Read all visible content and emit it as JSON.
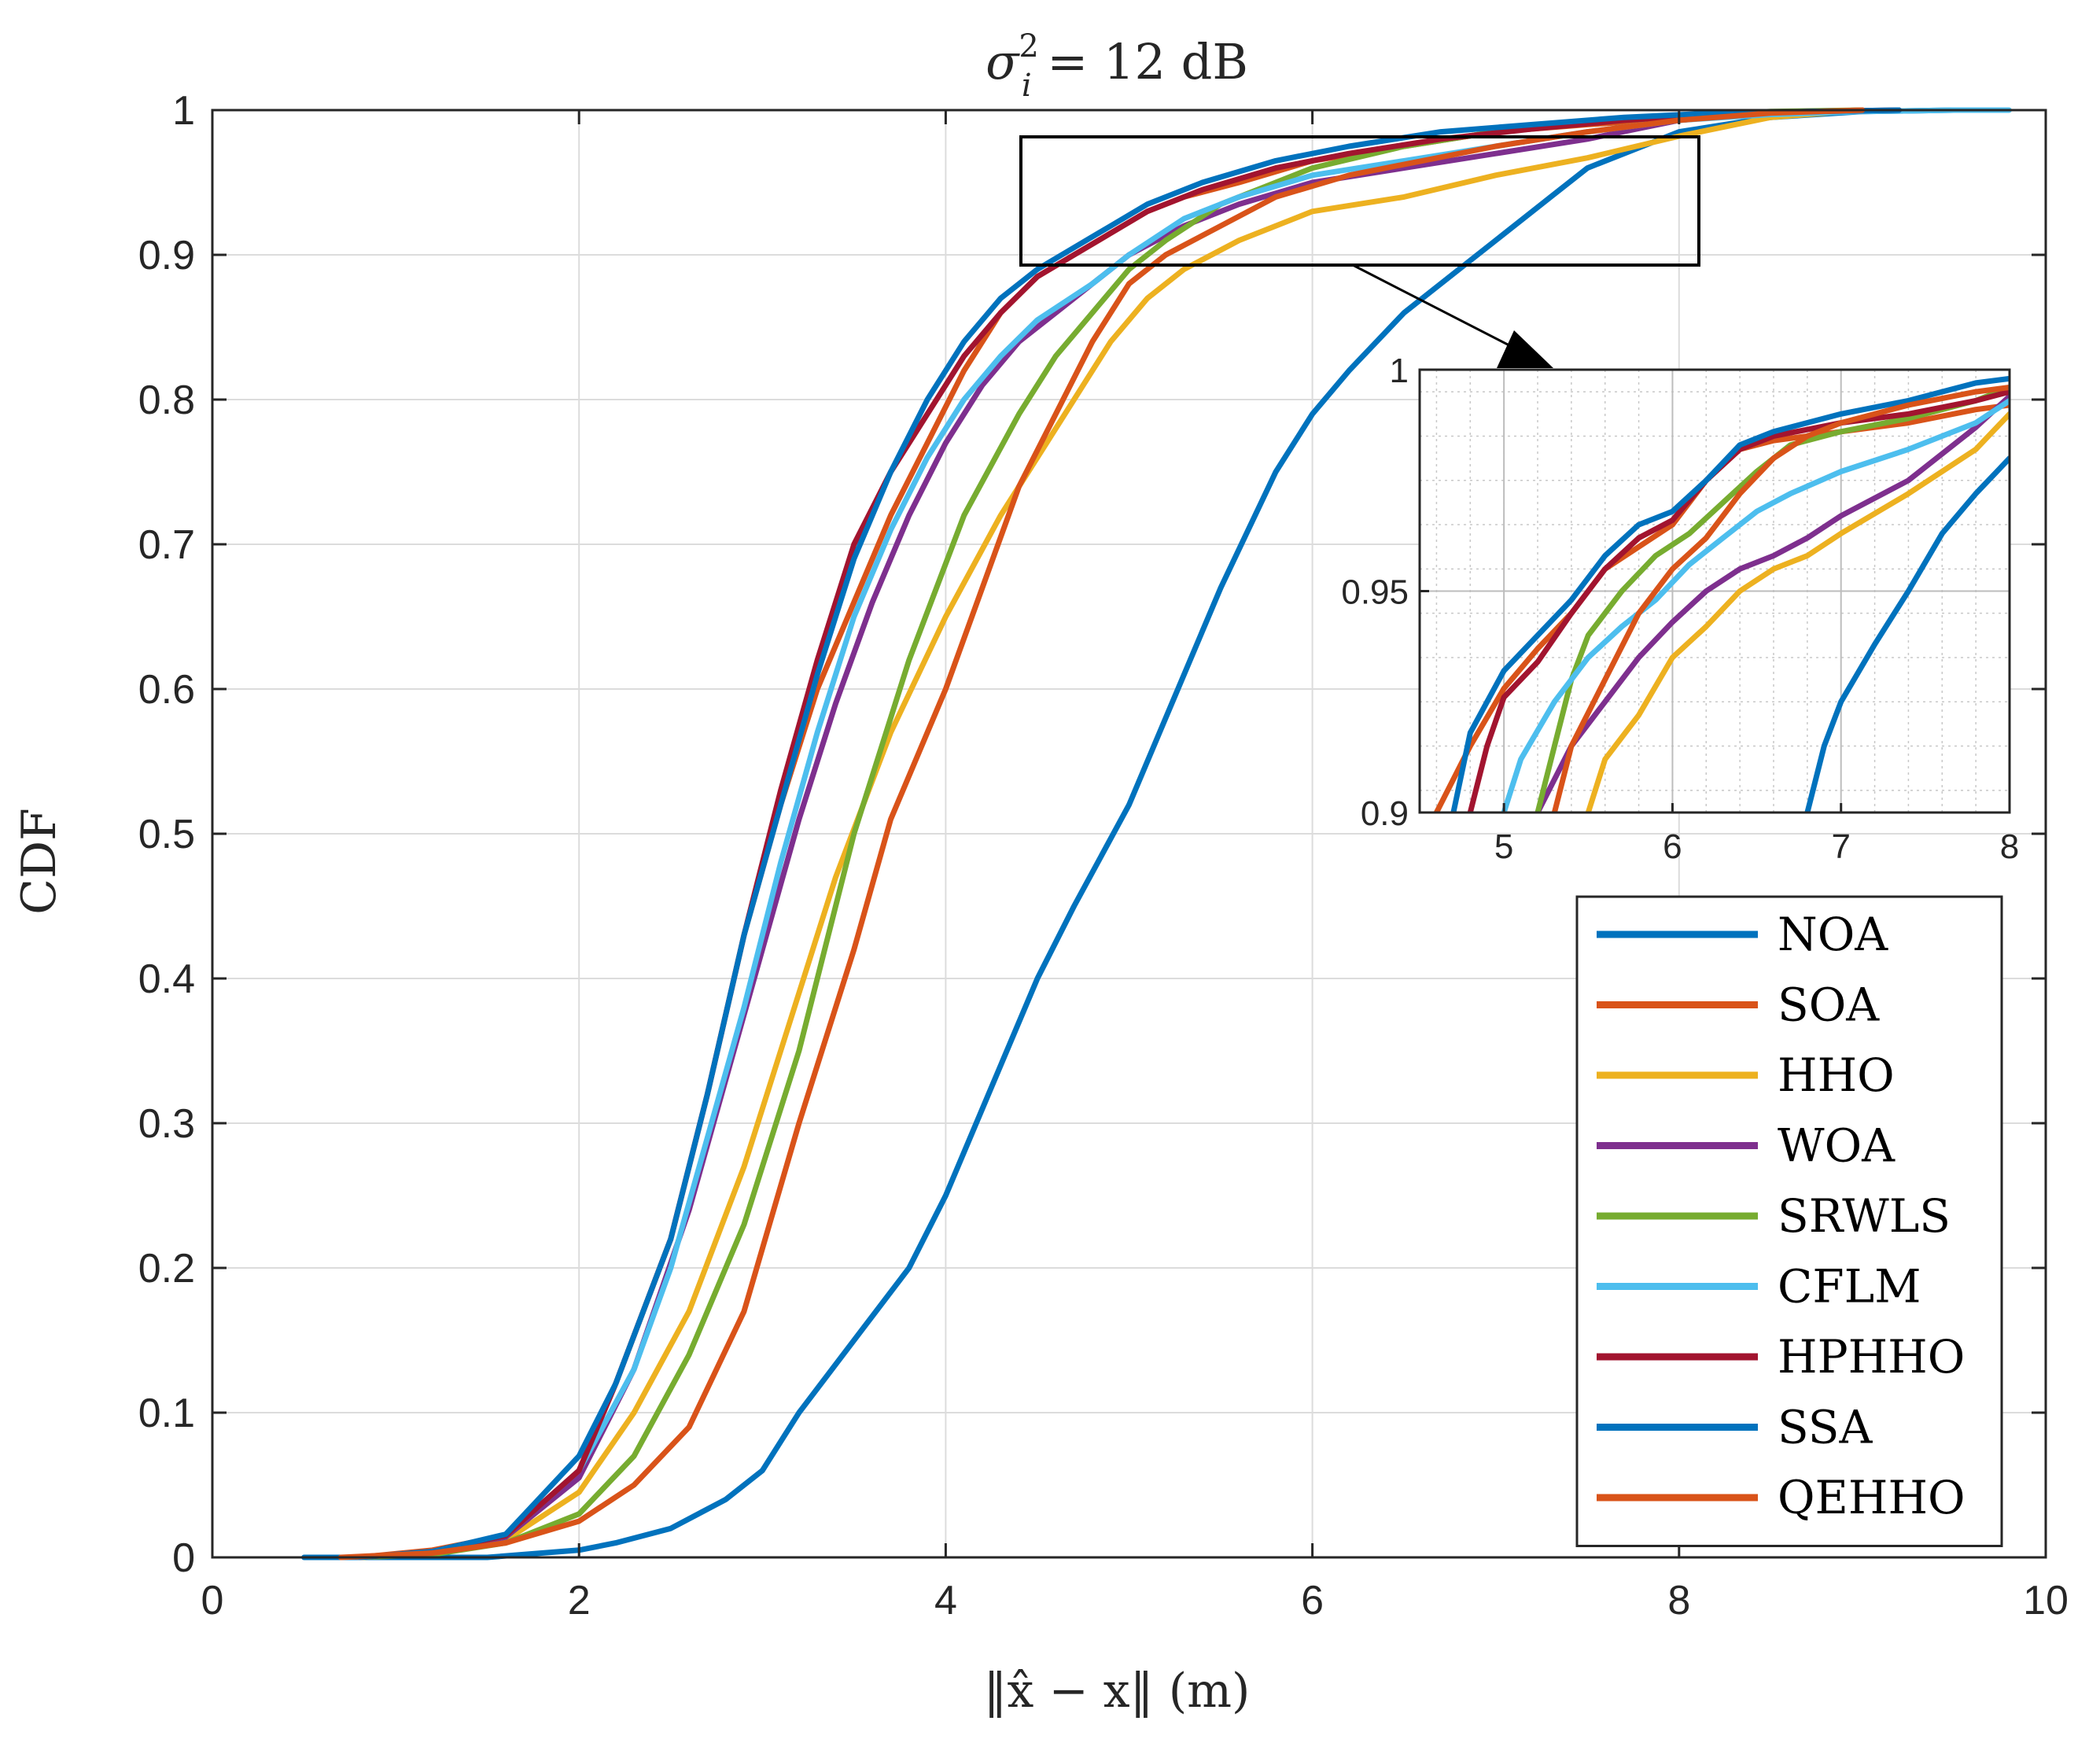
{
  "chart_data": {
    "type": "line",
    "title": "σi² = 12 dB",
    "title_parts": {
      "base": "σ",
      "sup": "2",
      "sub": "i",
      "rest": " = 12 dB"
    },
    "xlabel": "‖x̂ − x‖ (m)",
    "ylabel": "CDF",
    "xlim": [
      0,
      10
    ],
    "ylim": [
      0,
      1
    ],
    "x_ticks": [
      0,
      2,
      4,
      6,
      8,
      10
    ],
    "y_ticks": [
      0,
      0.1,
      0.2,
      0.3,
      0.4,
      0.5,
      0.6,
      0.7,
      0.8,
      0.9,
      1
    ],
    "x_tick_labels": [
      "0",
      "2",
      "4",
      "6",
      "8",
      "10"
    ],
    "y_tick_labels": [
      "0",
      "0.1",
      "0.2",
      "0.3",
      "0.4",
      "0.5",
      "0.6",
      "0.7",
      "0.8",
      "0.9",
      "1"
    ],
    "grid": true,
    "legend_position": "bottom-right",
    "series": [
      {
        "name": "NOA",
        "color": "#0072BD",
        "x": [
          0.5,
          1.0,
          1.5,
          2.0,
          2.2,
          2.5,
          2.8,
          3.0,
          3.2,
          3.5,
          3.8,
          4.0,
          4.2,
          4.5,
          4.7,
          5.0,
          5.2,
          5.5,
          5.8,
          6.0,
          6.2,
          6.5,
          6.8,
          7.0,
          7.3,
          7.5,
          8.0,
          8.5,
          9.0,
          9.5
        ],
        "y": [
          0,
          0,
          0,
          0.005,
          0.01,
          0.02,
          0.04,
          0.06,
          0.1,
          0.15,
          0.2,
          0.25,
          0.31,
          0.4,
          0.45,
          0.52,
          0.58,
          0.67,
          0.75,
          0.79,
          0.82,
          0.86,
          0.89,
          0.91,
          0.94,
          0.96,
          0.985,
          0.995,
          0.999,
          1.0
        ]
      },
      {
        "name": "SOA",
        "color": "#D95319",
        "x": [
          0.8,
          1.2,
          1.6,
          2.0,
          2.2,
          2.5,
          2.7,
          2.9,
          3.1,
          3.3,
          3.5,
          3.7,
          3.9,
          4.1,
          4.3,
          4.5,
          4.7,
          4.9,
          5.1,
          5.3,
          5.6,
          6.0,
          6.5,
          7.0,
          7.5,
          8.0,
          8.5,
          9.0
        ],
        "y": [
          0,
          0.005,
          0.015,
          0.06,
          0.12,
          0.22,
          0.32,
          0.43,
          0.52,
          0.6,
          0.66,
          0.72,
          0.77,
          0.82,
          0.86,
          0.885,
          0.9,
          0.915,
          0.93,
          0.94,
          0.95,
          0.965,
          0.975,
          0.985,
          0.99,
          0.994,
          0.998,
          1.0
        ]
      },
      {
        "name": "HHO",
        "color": "#EDB120",
        "x": [
          0.8,
          1.2,
          1.6,
          2.0,
          2.3,
          2.6,
          2.9,
          3.1,
          3.4,
          3.7,
          4.0,
          4.3,
          4.5,
          4.7,
          4.9,
          5.1,
          5.3,
          5.6,
          6.0,
          6.5,
          7.0,
          7.5,
          8.0,
          8.5,
          9.0
        ],
        "y": [
          0,
          0.003,
          0.012,
          0.045,
          0.1,
          0.17,
          0.27,
          0.35,
          0.47,
          0.57,
          0.65,
          0.72,
          0.76,
          0.8,
          0.84,
          0.87,
          0.89,
          0.91,
          0.93,
          0.94,
          0.955,
          0.967,
          0.982,
          0.995,
          1.0
        ]
      },
      {
        "name": "WOA",
        "color": "#7E2F8E",
        "x": [
          0.8,
          1.2,
          1.6,
          2.0,
          2.3,
          2.6,
          2.8,
          3.0,
          3.2,
          3.4,
          3.6,
          3.8,
          4.0,
          4.2,
          4.4,
          4.6,
          4.8,
          5.0,
          5.3,
          5.6,
          6.0,
          6.5,
          7.0,
          7.5,
          8.0,
          8.5,
          9.0
        ],
        "y": [
          0,
          0.004,
          0.014,
          0.055,
          0.13,
          0.24,
          0.33,
          0.42,
          0.51,
          0.59,
          0.66,
          0.72,
          0.77,
          0.81,
          0.84,
          0.86,
          0.88,
          0.9,
          0.92,
          0.935,
          0.95,
          0.96,
          0.97,
          0.98,
          0.993,
          0.998,
          1.0
        ]
      },
      {
        "name": "SRWLS",
        "color": "#77AC30",
        "x": [
          0.8,
          1.2,
          1.6,
          2.0,
          2.3,
          2.6,
          2.9,
          3.2,
          3.5,
          3.8,
          4.1,
          4.4,
          4.6,
          4.8,
          5.0,
          5.2,
          5.5,
          5.8,
          6.0,
          6.5,
          7.0,
          7.5,
          8.0,
          8.5,
          9.0
        ],
        "y": [
          0,
          0.002,
          0.01,
          0.03,
          0.07,
          0.14,
          0.23,
          0.35,
          0.5,
          0.62,
          0.72,
          0.79,
          0.83,
          0.86,
          0.89,
          0.91,
          0.935,
          0.95,
          0.96,
          0.975,
          0.985,
          0.992,
          0.996,
          0.999,
          1.0
        ]
      },
      {
        "name": "CFLM",
        "color": "#4DBEEE",
        "x": [
          0.8,
          1.2,
          1.6,
          2.0,
          2.3,
          2.5,
          2.7,
          2.9,
          3.1,
          3.3,
          3.5,
          3.7,
          3.9,
          4.1,
          4.3,
          4.5,
          4.8,
          5.0,
          5.3,
          5.6,
          6.0,
          6.5,
          7.0,
          7.5,
          8.0,
          8.5,
          9.0,
          9.5,
          9.8
        ],
        "y": [
          0,
          0.004,
          0.015,
          0.06,
          0.13,
          0.2,
          0.29,
          0.38,
          0.48,
          0.57,
          0.65,
          0.71,
          0.76,
          0.8,
          0.83,
          0.855,
          0.88,
          0.9,
          0.925,
          0.94,
          0.955,
          0.965,
          0.975,
          0.985,
          0.993,
          0.997,
          0.999,
          1.0,
          1.0
        ]
      },
      {
        "name": "HPHHO",
        "color": "#A2142F",
        "x": [
          0.8,
          1.2,
          1.6,
          2.0,
          2.2,
          2.5,
          2.7,
          2.9,
          3.1,
          3.3,
          3.5,
          3.7,
          3.9,
          4.1,
          4.3,
          4.5,
          4.7,
          4.9,
          5.1,
          5.4,
          5.8,
          6.2,
          6.7,
          7.2,
          7.7,
          8.2,
          8.7,
          9.2
        ],
        "y": [
          0,
          0.004,
          0.015,
          0.06,
          0.12,
          0.22,
          0.32,
          0.43,
          0.53,
          0.62,
          0.7,
          0.75,
          0.79,
          0.83,
          0.86,
          0.885,
          0.9,
          0.915,
          0.93,
          0.945,
          0.96,
          0.97,
          0.98,
          0.987,
          0.993,
          0.997,
          0.999,
          1.0
        ]
      },
      {
        "name": "SSA",
        "color": "#0072BD",
        "x": [
          0.8,
          1.2,
          1.6,
          2.0,
          2.2,
          2.5,
          2.7,
          2.9,
          3.1,
          3.3,
          3.5,
          3.7,
          3.9,
          4.1,
          4.3,
          4.5,
          4.7,
          4.9,
          5.1,
          5.4,
          5.8,
          6.2,
          6.7,
          7.2,
          7.7,
          8.2,
          8.7,
          9.2
        ],
        "y": [
          0,
          0.004,
          0.016,
          0.07,
          0.12,
          0.22,
          0.32,
          0.43,
          0.52,
          0.61,
          0.69,
          0.75,
          0.8,
          0.84,
          0.87,
          0.89,
          0.905,
          0.92,
          0.935,
          0.95,
          0.965,
          0.975,
          0.985,
          0.99,
          0.995,
          0.998,
          0.999,
          1.0
        ]
      },
      {
        "name": "QEHHO",
        "color": "#D95319",
        "x": [
          0.7,
          1.2,
          1.6,
          2.0,
          2.3,
          2.6,
          2.9,
          3.2,
          3.5,
          3.7,
          4.0,
          4.2,
          4.4,
          4.6,
          4.8,
          5.0,
          5.2,
          5.5,
          5.8,
          6.2,
          6.6,
          7.0,
          7.5,
          8.0,
          8.5,
          9.0
        ],
        "y": [
          0,
          0.003,
          0.01,
          0.025,
          0.05,
          0.09,
          0.17,
          0.3,
          0.42,
          0.51,
          0.6,
          0.67,
          0.74,
          0.79,
          0.84,
          0.88,
          0.9,
          0.92,
          0.94,
          0.955,
          0.965,
          0.975,
          0.985,
          0.993,
          0.998,
          1.0
        ]
      }
    ],
    "inset": {
      "xlim": [
        4.5,
        8
      ],
      "ylim": [
        0.9,
        1
      ],
      "x_ticks": [
        5,
        6,
        7,
        8
      ],
      "y_ticks": [
        0.9,
        0.95,
        1
      ],
      "x_tick_labels": [
        "5",
        "6",
        "7",
        "8"
      ],
      "y_tick_labels": [
        "0.9",
        "0.95",
        "1"
      ],
      "grid": true,
      "minor_grid": true,
      "series": [
        {
          "name": "NOA",
          "color": "#0072BD",
          "x": [
            6.8,
            6.9,
            7.0,
            7.2,
            7.4,
            7.6,
            7.8,
            8.0
          ],
          "y": [
            0.9,
            0.915,
            0.925,
            0.938,
            0.95,
            0.963,
            0.972,
            0.98
          ]
        },
        {
          "name": "SOA",
          "color": "#D95319",
          "x": [
            4.6,
            4.8,
            5.0,
            5.2,
            5.4,
            5.6,
            5.8,
            6.0,
            6.2,
            6.4,
            6.6,
            7.0,
            7.4,
            7.8,
            8.0
          ],
          "y": [
            0.9,
            0.915,
            0.928,
            0.937,
            0.945,
            0.955,
            0.96,
            0.965,
            0.975,
            0.982,
            0.984,
            0.986,
            0.988,
            0.991,
            0.992
          ]
        },
        {
          "name": "HHO",
          "color": "#EDB120",
          "x": [
            5.5,
            5.6,
            5.8,
            6.0,
            6.2,
            6.4,
            6.6,
            6.8,
            7.0,
            7.4,
            7.8,
            8.0
          ],
          "y": [
            0.9,
            0.912,
            0.922,
            0.935,
            0.942,
            0.95,
            0.955,
            0.958,
            0.963,
            0.972,
            0.982,
            0.99
          ]
        },
        {
          "name": "WOA",
          "color": "#7E2F8E",
          "x": [
            5.2,
            5.4,
            5.6,
            5.8,
            6.0,
            6.2,
            6.4,
            6.6,
            6.8,
            7.0,
            7.4,
            7.8,
            8.0
          ],
          "y": [
            0.9,
            0.915,
            0.925,
            0.935,
            0.943,
            0.95,
            0.955,
            0.958,
            0.962,
            0.967,
            0.975,
            0.987,
            0.994
          ]
        },
        {
          "name": "SRWLS",
          "color": "#77AC30",
          "x": [
            5.2,
            5.3,
            5.4,
            5.5,
            5.7,
            5.9,
            6.1,
            6.3,
            6.5,
            6.7,
            7.0,
            7.4,
            7.8,
            8.0
          ],
          "y": [
            0.9,
            0.915,
            0.93,
            0.94,
            0.95,
            0.958,
            0.963,
            0.97,
            0.977,
            0.983,
            0.986,
            0.989,
            0.993,
            0.996
          ]
        },
        {
          "name": "CFLM",
          "color": "#4DBEEE",
          "x": [
            5.0,
            5.1,
            5.3,
            5.5,
            5.7,
            5.9,
            6.1,
            6.3,
            6.5,
            6.7,
            7.0,
            7.4,
            7.8,
            8.0
          ],
          "y": [
            0.9,
            0.912,
            0.925,
            0.935,
            0.942,
            0.948,
            0.956,
            0.962,
            0.968,
            0.972,
            0.977,
            0.982,
            0.988,
            0.993
          ]
        },
        {
          "name": "HPHHO",
          "color": "#A2142F",
          "x": [
            4.8,
            4.9,
            5.0,
            5.2,
            5.4,
            5.6,
            5.8,
            6.0,
            6.2,
            6.4,
            6.6,
            7.0,
            7.4,
            7.8,
            8.0
          ],
          "y": [
            0.9,
            0.915,
            0.926,
            0.934,
            0.945,
            0.955,
            0.962,
            0.966,
            0.975,
            0.982,
            0.985,
            0.988,
            0.99,
            0.993,
            0.995
          ]
        },
        {
          "name": "SSA",
          "color": "#0072BD",
          "x": [
            4.7,
            4.8,
            5.0,
            5.2,
            5.4,
            5.6,
            5.8,
            6.0,
            6.2,
            6.4,
            6.6,
            7.0,
            7.4,
            7.8,
            8.0
          ],
          "y": [
            0.9,
            0.918,
            0.932,
            0.94,
            0.948,
            0.958,
            0.965,
            0.968,
            0.975,
            0.983,
            0.986,
            0.99,
            0.993,
            0.997,
            0.998
          ]
        },
        {
          "name": "QEHHO",
          "color": "#D95319",
          "x": [
            5.3,
            5.4,
            5.6,
            5.8,
            6.0,
            6.2,
            6.4,
            6.6,
            6.8,
            7.0,
            7.4,
            7.8,
            8.0
          ],
          "y": [
            0.9,
            0.915,
            0.93,
            0.945,
            0.955,
            0.962,
            0.972,
            0.98,
            0.985,
            0.988,
            0.992,
            0.995,
            0.996
          ]
        }
      ]
    }
  }
}
